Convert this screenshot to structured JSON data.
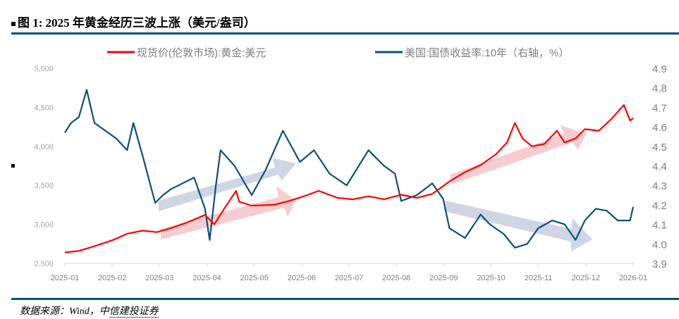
{
  "title": "图 1: 2025 年黄金经历三波上涨（美元/盎司）",
  "source": {
    "prefix": "数据来源：Wind，中",
    "link": "信建投证券"
  },
  "chart_data": {
    "type": "line",
    "title": "图 1: 2025 年黄金经历三波上涨（美元/盎司）",
    "legend_position": "top",
    "x_ticks": [
      "2025-01",
      "2025-02",
      "2025-03",
      "2025-04",
      "2025-05",
      "2025-06",
      "2025-07",
      "2025-08",
      "2025-09",
      "2025-10",
      "2025-11",
      "2025-12",
      "2026-01"
    ],
    "y_left": {
      "range": [
        2500,
        5000
      ],
      "ticks": [
        "2,500",
        "3,000",
        "3,500",
        "4,000",
        "4,500",
        "5,000"
      ]
    },
    "y_right": {
      "range": [
        3.9,
        4.9
      ],
      "ticks": [
        "3.9",
        "4.0",
        "4.1",
        "4.2",
        "4.3",
        "4.4",
        "4.5",
        "4.6",
        "4.7",
        "4.8",
        "4.9"
      ]
    },
    "grid": false,
    "series": [
      {
        "name": "现货价(伦敦市场):黄金:美元",
        "axis": "left",
        "color": "#ff0000",
        "x": [
          "2025-01-01",
          "2025-01-10",
          "2025-01-20",
          "2025-02-01",
          "2025-02-10",
          "2025-02-20",
          "2025-03-01",
          "2025-03-10",
          "2025-03-20",
          "2025-04-01",
          "2025-04-07",
          "2025-04-14",
          "2025-04-21",
          "2025-04-23",
          "2025-05-01",
          "2025-05-15",
          "2025-05-25",
          "2025-06-05",
          "2025-06-13",
          "2025-06-25",
          "2025-07-05",
          "2025-07-15",
          "2025-07-25",
          "2025-08-05",
          "2025-08-15",
          "2025-08-25",
          "2025-09-05",
          "2025-09-15",
          "2025-09-25",
          "2025-10-05",
          "2025-10-12",
          "2025-10-17",
          "2025-10-22",
          "2025-10-28",
          "2025-11-05",
          "2025-11-13",
          "2025-11-18",
          "2025-11-25",
          "2025-12-01",
          "2025-12-10",
          "2025-12-18",
          "2025-12-26",
          "2025-12-30",
          "2026-01-01"
        ],
        "values": [
          2640,
          2660,
          2720,
          2800,
          2880,
          2920,
          2900,
          2950,
          3020,
          3120,
          3000,
          3220,
          3430,
          3290,
          3240,
          3250,
          3300,
          3370,
          3430,
          3340,
          3320,
          3360,
          3320,
          3380,
          3340,
          3390,
          3550,
          3670,
          3760,
          3900,
          4050,
          4300,
          4100,
          4000,
          4030,
          4200,
          4050,
          4100,
          4220,
          4200,
          4350,
          4530,
          4330,
          4360
        ]
      },
      {
        "name": "美国:国债收益率:10年（右轴，%）",
        "axis": "right",
        "color": "#0b4f7c",
        "x": [
          "2025-01-01",
          "2025-01-05",
          "2025-01-10",
          "2025-01-15",
          "2025-01-20",
          "2025-01-27",
          "2025-02-03",
          "2025-02-10",
          "2025-02-14",
          "2025-02-20",
          "2025-02-28",
          "2025-03-05",
          "2025-03-10",
          "2025-03-15",
          "2025-03-25",
          "2025-04-01",
          "2025-04-04",
          "2025-04-08",
          "2025-04-11",
          "2025-04-20",
          "2025-05-01",
          "2025-05-10",
          "2025-05-21",
          "2025-06-01",
          "2025-06-10",
          "2025-06-20",
          "2025-07-01",
          "2025-07-15",
          "2025-07-25",
          "2025-08-01",
          "2025-08-05",
          "2025-08-15",
          "2025-08-25",
          "2025-09-01",
          "2025-09-05",
          "2025-09-15",
          "2025-09-25",
          "2025-10-01",
          "2025-10-10",
          "2025-10-17",
          "2025-10-25",
          "2025-11-01",
          "2025-11-10",
          "2025-11-18",
          "2025-11-25",
          "2025-12-01",
          "2025-12-08",
          "2025-12-15",
          "2025-12-22",
          "2025-12-30",
          "2026-01-01"
        ],
        "values": [
          4.57,
          4.62,
          4.65,
          4.79,
          4.62,
          4.58,
          4.54,
          4.48,
          4.62,
          4.45,
          4.21,
          4.25,
          4.28,
          4.3,
          4.34,
          4.18,
          4.02,
          4.3,
          4.48,
          4.4,
          4.25,
          4.38,
          4.58,
          4.42,
          4.48,
          4.36,
          4.3,
          4.48,
          4.4,
          4.36,
          4.22,
          4.25,
          4.31,
          4.23,
          4.08,
          4.03,
          4.15,
          4.1,
          4.05,
          3.98,
          4.0,
          4.08,
          4.12,
          4.1,
          4.02,
          4.12,
          4.18,
          4.17,
          4.12,
          4.12,
          4.19
        ]
      }
    ]
  }
}
